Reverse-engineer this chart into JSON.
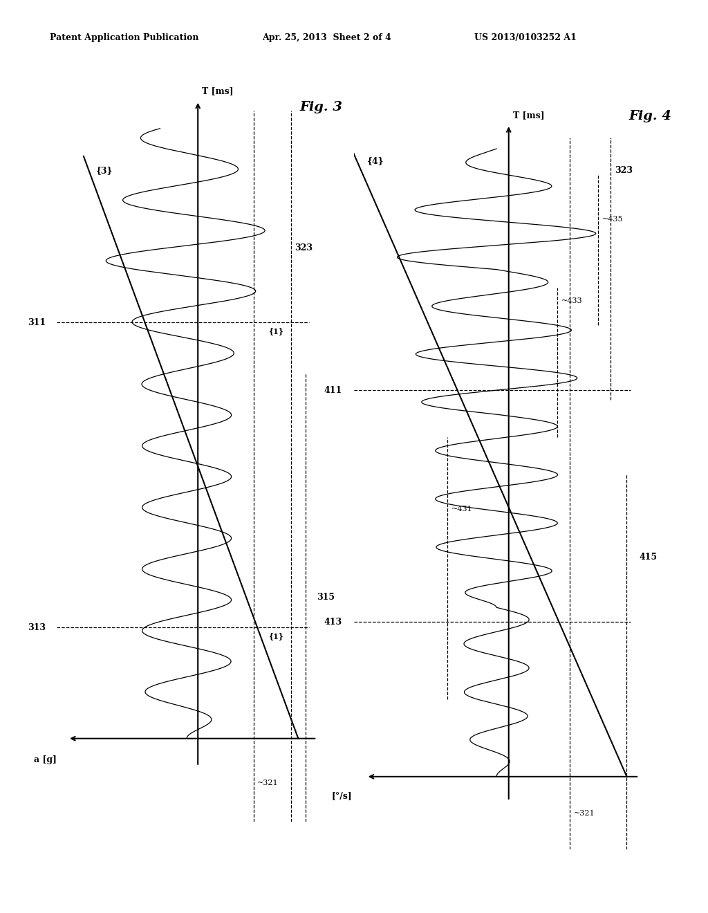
{
  "background_color": "#ffffff",
  "header_left": "Patent Application Publication",
  "header_mid": "Apr. 25, 2013  Sheet 2 of 4",
  "header_right": "US 2013/0103252 A1",
  "fig3": {
    "title": "Fig. 3",
    "t_axis_label": "T [ms]",
    "amp_axis_label": "a [g]",
    "label_311": "311",
    "label_313": "313",
    "label_3": "{3}",
    "label_315": "315",
    "label_321": "~321",
    "label_323": "323",
    "label_1a": "{1}",
    "label_1b": "{1}"
  },
  "fig4": {
    "title": "Fig. 4",
    "t_axis_label": "T [ms]",
    "amp_axis_label": "[°/s]",
    "label_411": "411",
    "label_413": "413",
    "label_4": "{4}",
    "label_415": "415",
    "label_321": "~321",
    "label_323": "323",
    "label_431": "~431",
    "label_433": "~433",
    "label_435": "~435"
  }
}
